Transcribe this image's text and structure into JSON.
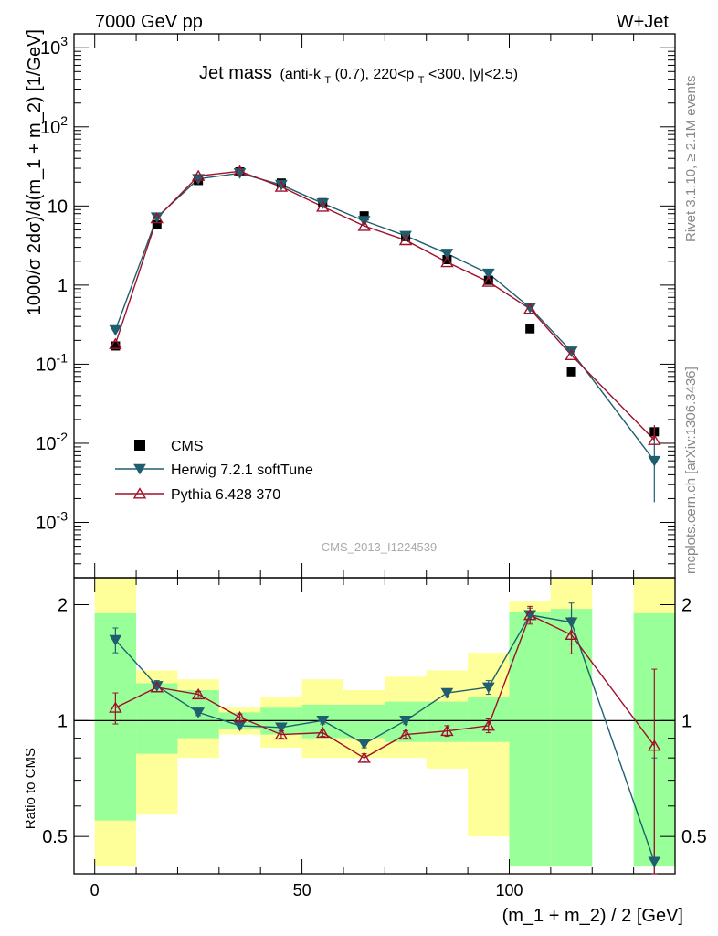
{
  "header": {
    "left": "7000 GeV pp",
    "right": "W+Jet"
  },
  "title": {
    "main": "Jet mass",
    "sub_prefix": "(anti-k",
    "sub_T": "T",
    "sub_mid": "(0.7), 220<p",
    "sub_T2": "T",
    "sub_suffix": "<300, |y|<2.5)"
  },
  "side_labels": {
    "rivet": "Rivet 3.1.10, ≥ 2.1M events",
    "mcplots": "mcplots.cern.ch [arXiv:1306.3436]"
  },
  "watermark": "CMS_2013_I1224539",
  "legend": [
    "CMS",
    "Herwig 7.2.1 softTune",
    "Pythia 6.428 370"
  ],
  "colors": {
    "data": "#000000",
    "herwig": "#1f5f6f",
    "pythia": "#a0102a",
    "band_green": "#99ff99",
    "band_yellow": "#ffff99"
  },
  "chart_data": {
    "type": "scatter",
    "xlabel": "(m_1 + m_2) / 2 [GeV]",
    "ylabel": "1000/σ 2dσ)/d(m_1 + m_2) [1/GeV]",
    "ratio_ylabel": "Ratio to CMS",
    "xlim": [
      -5,
      140
    ],
    "ylim": [
      0.0002,
      1500
    ],
    "ylog": true,
    "ratio_ylim": [
      0.4,
      2.35
    ],
    "x_ticks": [
      "0",
      "50",
      "100"
    ],
    "y_ticks": [
      "10^-3",
      "10^-2",
      "10^-1",
      "1",
      "10",
      "10^2",
      "10^3"
    ],
    "ratio_ticks": [
      "0.5",
      "1",
      "2"
    ],
    "bins": [
      [
        0,
        10
      ],
      [
        10,
        20
      ],
      [
        20,
        30
      ],
      [
        30,
        40
      ],
      [
        40,
        50
      ],
      [
        50,
        60
      ],
      [
        60,
        70
      ],
      [
        70,
        80
      ],
      [
        80,
        90
      ],
      [
        90,
        100
      ],
      [
        100,
        110
      ],
      [
        110,
        120
      ],
      [
        130,
        140
      ]
    ],
    "x": [
      5,
      15,
      25,
      35,
      45,
      55,
      65,
      75,
      85,
      95,
      105,
      115,
      135
    ],
    "series": [
      {
        "name": "CMS",
        "values": [
          0.17,
          5.8,
          21,
          27,
          19.5,
          11,
          7.5,
          4.1,
          2.1,
          1.15,
          0.28,
          0.08,
          0.014
        ]
      },
      {
        "name": "Herwig 7.2.1 softTune",
        "values": [
          0.27,
          7.2,
          22,
          26,
          18.5,
          10.8,
          6.5,
          4.2,
          2.5,
          1.4,
          0.52,
          0.145,
          0.006
        ],
        "ratio": [
          1.62,
          1.23,
          1.05,
          0.97,
          0.96,
          1.0,
          0.87,
          1.0,
          1.18,
          1.22,
          1.88,
          1.8,
          0.43
        ],
        "ratio_err": [
          0.12,
          0.04,
          0.02,
          0.02,
          0.02,
          0.02,
          0.02,
          0.02,
          0.03,
          0.05,
          0.08,
          0.22,
          0.37
        ]
      },
      {
        "name": "Pythia 6.428 370",
        "values": [
          0.18,
          7.0,
          24,
          27.5,
          17.5,
          9.8,
          5.6,
          3.7,
          1.95,
          1.1,
          0.5,
          0.13,
          0.011
        ],
        "ratio": [
          1.08,
          1.22,
          1.17,
          1.02,
          0.92,
          0.93,
          0.8,
          0.92,
          0.94,
          0.97,
          1.88,
          1.67,
          0.86
        ],
        "ratio_err": [
          0.1,
          0.03,
          0.02,
          0.02,
          0.02,
          0.02,
          0.02,
          0.02,
          0.03,
          0.04,
          0.1,
          0.18,
          0.5
        ]
      }
    ],
    "band_green": [
      [
        0.55,
        1.9
      ],
      [
        0.82,
        1.25
      ],
      [
        0.9,
        1.2
      ],
      [
        0.95,
        1.05
      ],
      [
        0.92,
        1.08
      ],
      [
        0.9,
        1.1
      ],
      [
        0.9,
        1.1
      ],
      [
        0.88,
        1.12
      ],
      [
        0.88,
        1.12
      ],
      [
        0.88,
        1.15
      ],
      [
        0.42,
        1.92
      ],
      [
        0.42,
        1.95
      ],
      [
        0.42,
        1.9
      ]
    ],
    "band_yellow": [
      [
        0.42,
        2.35
      ],
      [
        0.57,
        1.35
      ],
      [
        0.8,
        1.28
      ],
      [
        0.92,
        1.08
      ],
      [
        0.85,
        1.15
      ],
      [
        0.8,
        1.28
      ],
      [
        0.8,
        1.2
      ],
      [
        0.8,
        1.3
      ],
      [
        0.75,
        1.35
      ],
      [
        0.5,
        1.5
      ],
      [
        0.42,
        2.05
      ],
      [
        0.42,
        2.35
      ],
      [
        0.42,
        2.35
      ]
    ]
  }
}
